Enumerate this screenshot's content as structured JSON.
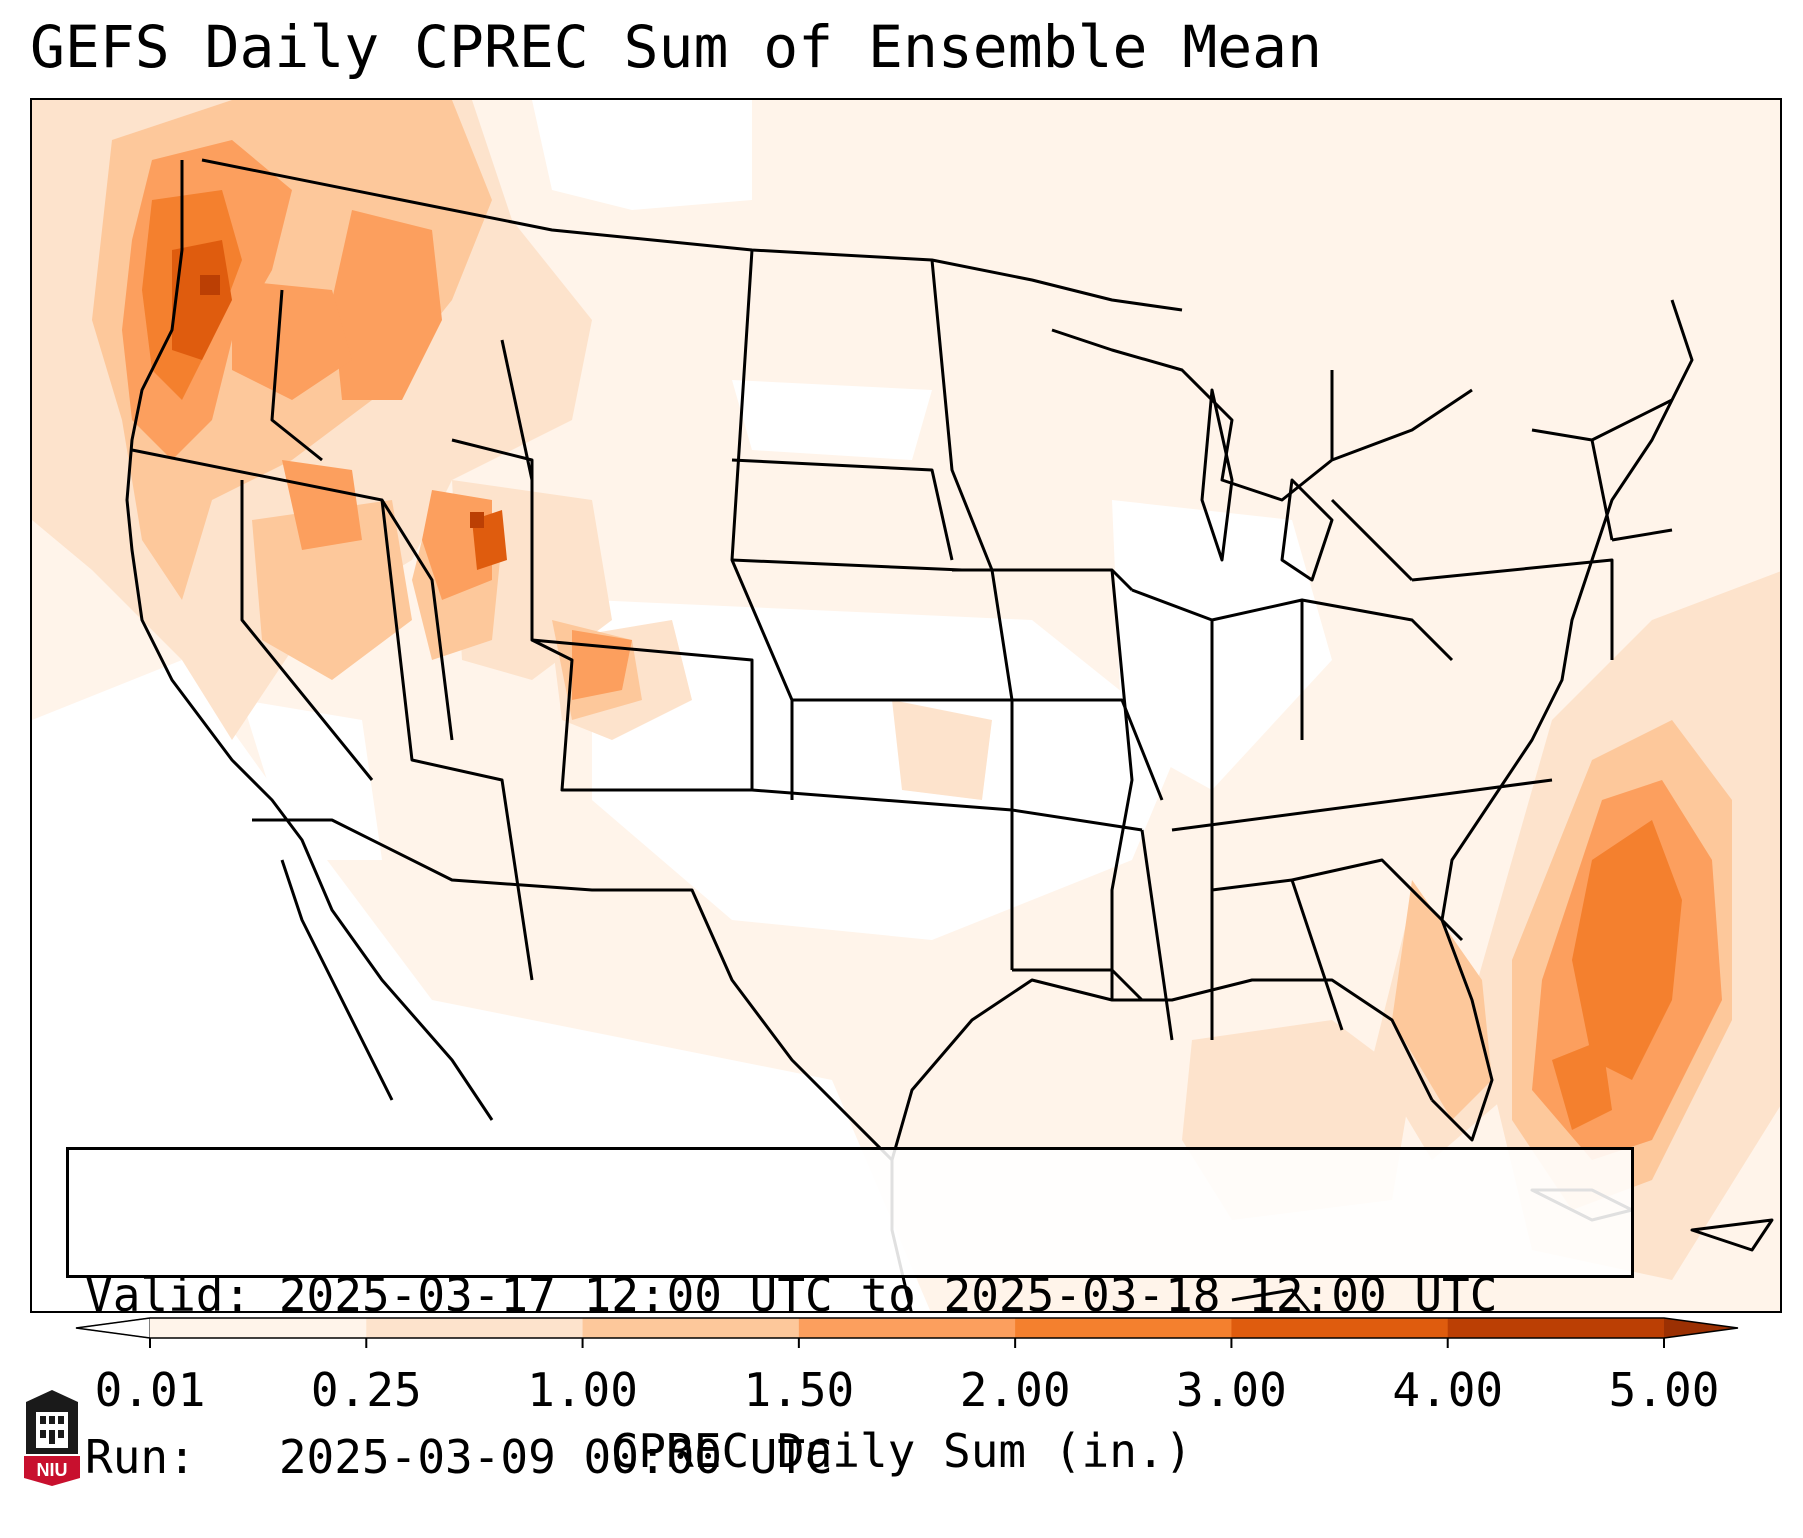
{
  "title": "GEFS Daily CPREC Sum of Ensemble Mean",
  "info": {
    "valid_line": "Valid: 2025-03-17 12:00 UTC to 2025-03-18 12:00 UTC",
    "run_line": "Run:   2025-03-09 00:00 UTC"
  },
  "colorbar": {
    "label": "CPREC Daily Sum (in.)",
    "ticks": [
      "0.01",
      "0.25",
      "1.00",
      "1.50",
      "2.00",
      "3.00",
      "4.00",
      "5.00"
    ],
    "colors": [
      "#fff4ea",
      "#fde3cc",
      "#fdc89b",
      "#fc9f5e",
      "#f4802e",
      "#df5c0e",
      "#bb3f04"
    ],
    "under_color": "#ffffff",
    "over_color": "#9b3003"
  },
  "logo": {
    "text": "NIU",
    "color": "#c8102e"
  },
  "map": {
    "region": "Continental United States",
    "variable": "Convective precipitation daily sum (ensemble mean)",
    "shading_colors": {
      "light": "#fff4ea",
      "pale": "#fde3cc",
      "tan": "#fdc89b",
      "orange": "#fc9f5e",
      "dark_orange": "#f4802e",
      "red_orange": "#df5c0e",
      "brown": "#bb3f04"
    }
  }
}
